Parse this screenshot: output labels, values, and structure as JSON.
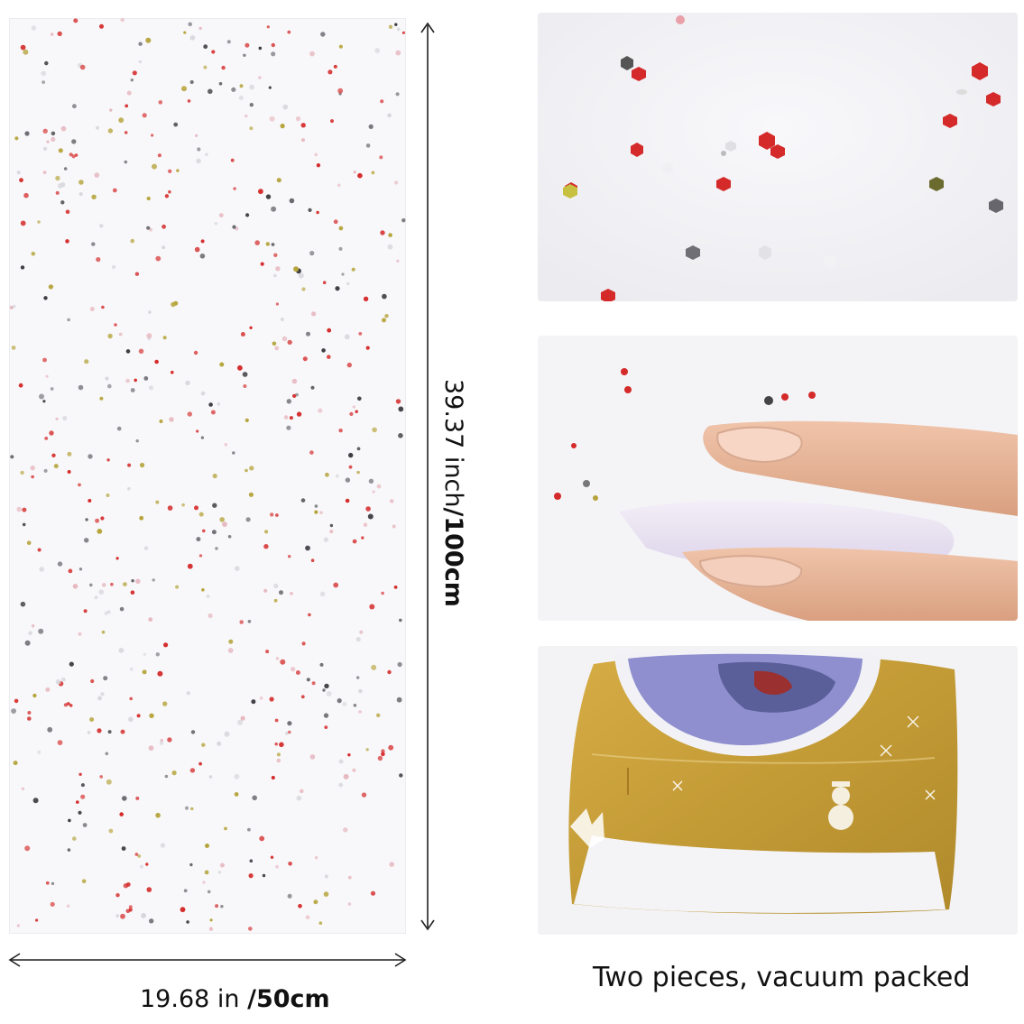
{
  "dimensions": {
    "width_in": "19.68 in",
    "width_sep": "/",
    "width_cm": "50cm",
    "height_in": "39.37 inch",
    "height_sep": "/",
    "height_cm": "100cm"
  },
  "caption": "Two pieces, vacuum packed",
  "colors": {
    "sequin_red": "#d42a2a",
    "sequin_silver": "#7a7a80",
    "sequin_gold": "#b5a33a",
    "package_gold": "#c9a23a",
    "skin": "#e8b79a",
    "fiber": "#ece6f2"
  }
}
